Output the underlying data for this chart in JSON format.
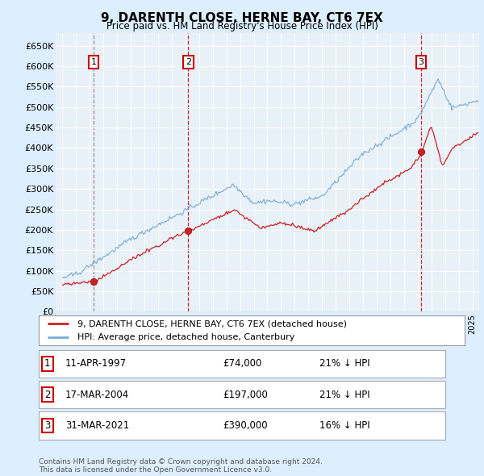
{
  "title": "9, DARENTH CLOSE, HERNE BAY, CT6 7EX",
  "subtitle": "Price paid vs. HM Land Registry's House Price Index (HPI)",
  "ylabel_ticks": [
    "£0",
    "£50K",
    "£100K",
    "£150K",
    "£200K",
    "£250K",
    "£300K",
    "£350K",
    "£400K",
    "£450K",
    "£500K",
    "£550K",
    "£600K",
    "£650K"
  ],
  "ytick_values": [
    0,
    50000,
    100000,
    150000,
    200000,
    250000,
    300000,
    350000,
    400000,
    450000,
    500000,
    550000,
    600000,
    650000
  ],
  "xmin": 1994.5,
  "xmax": 2025.5,
  "ymin": 0,
  "ymax": 680000,
  "purchase_dates": [
    1997.27,
    2004.21,
    2021.25
  ],
  "purchase_prices": [
    74000,
    197000,
    390000
  ],
  "transaction_labels": [
    "1",
    "2",
    "3"
  ],
  "legend_line1": "9, DARENTH CLOSE, HERNE BAY, CT6 7EX (detached house)",
  "legend_line2": "HPI: Average price, detached house, Canterbury",
  "table_rows": [
    [
      "1",
      "11-APR-1997",
      "£74,000",
      "21% ↓ HPI"
    ],
    [
      "2",
      "17-MAR-2004",
      "£197,000",
      "21% ↓ HPI"
    ],
    [
      "3",
      "31-MAR-2021",
      "£390,000",
      "16% ↓ HPI"
    ]
  ],
  "footer": "Contains HM Land Registry data © Crown copyright and database right 2024.\nThis data is licensed under the Open Government Licence v3.0.",
  "hpi_color": "#7aadd4",
  "price_color": "#cc2222",
  "bg_color": "#ddeeff",
  "plot_bg": "#e8f0f8",
  "grid_color": "#ffffff",
  "box_color": "#cc0000",
  "vline_color_1": "#888888",
  "vline_color_23": "#cc0000"
}
